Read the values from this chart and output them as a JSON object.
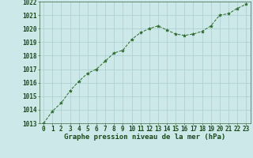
{
  "x": [
    0,
    1,
    2,
    3,
    4,
    5,
    6,
    7,
    8,
    9,
    10,
    11,
    12,
    13,
    14,
    15,
    16,
    17,
    18,
    19,
    20,
    21,
    22,
    23
  ],
  "y": [
    1013.0,
    1013.9,
    1014.5,
    1015.4,
    1016.1,
    1016.7,
    1017.0,
    1017.6,
    1018.2,
    1018.4,
    1019.2,
    1019.7,
    1020.0,
    1020.2,
    1019.9,
    1019.6,
    1019.5,
    1019.6,
    1019.8,
    1020.2,
    1021.0,
    1021.1,
    1021.5,
    1021.8
  ],
  "line_color": "#2d6a2d",
  "marker": "*",
  "marker_color": "#2d6a2d",
  "bg_color": "#cce8e8",
  "grid_color": "#aacece",
  "xlabel": "Graphe pression niveau de la mer (hPa)",
  "xlabel_color": "#1a4a1a",
  "tick_color": "#1a4a1a",
  "ylim": [
    1013,
    1022
  ],
  "xlim": [
    -0.5,
    23.5
  ],
  "yticks": [
    1013,
    1014,
    1015,
    1016,
    1017,
    1018,
    1019,
    1020,
    1021,
    1022
  ],
  "xticks": [
    0,
    1,
    2,
    3,
    4,
    5,
    6,
    7,
    8,
    9,
    10,
    11,
    12,
    13,
    14,
    15,
    16,
    17,
    18,
    19,
    20,
    21,
    22,
    23
  ],
  "tick_font_size": 5.5,
  "label_font_size": 6.5
}
